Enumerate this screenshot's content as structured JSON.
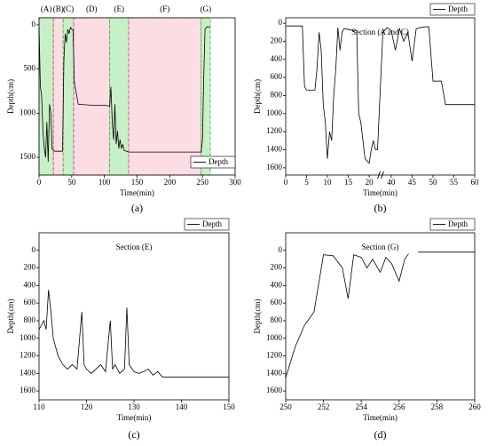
{
  "chart_data": [
    {
      "type": "line",
      "panel_label": "(a)",
      "xlabel": "Time(min)",
      "ylabel": "Depth(cm)",
      "x": [
        0,
        2,
        4,
        6,
        8,
        10,
        12,
        14,
        16,
        18,
        20,
        22,
        24,
        30,
        36,
        38,
        40,
        42,
        44,
        46,
        48,
        50,
        52,
        54,
        60,
        80,
        100,
        108,
        110,
        112,
        114,
        116,
        118,
        120,
        122,
        124,
        126,
        128,
        130,
        134,
        137,
        140,
        160,
        180,
        200,
        220,
        240,
        248,
        250,
        252,
        254,
        256,
        258,
        260,
        262
      ],
      "series": [
        {
          "name": "Depth",
          "color": "#000000",
          "values": [
            30,
            700,
            800,
            1200,
            1400,
            1500,
            1100,
            1550,
            900,
            1000,
            1400,
            1420,
            1430,
            1430,
            1430,
            400,
            100,
            200,
            50,
            100,
            30,
            50,
            60,
            650,
            900,
            910,
            910,
            920,
            700,
            1100,
            1300,
            900,
            1350,
            1200,
            1400,
            1300,
            1400,
            1350,
            1420,
            1430,
            1440,
            1440,
            1440,
            1440,
            1440,
            1440,
            1440,
            1440,
            1300,
            600,
            50,
            30,
            20,
            30,
            30
          ]
        }
      ],
      "xlim": [
        0,
        300
      ],
      "xticks": [
        0,
        50,
        100,
        150,
        200,
        250,
        300
      ],
      "ylim": [
        -80,
        1700
      ],
      "yticks": [
        0,
        500,
        1000,
        1500
      ],
      "y_inverted": true,
      "legend": "lower right",
      "regions": [
        {
          "label": "(A)",
          "start": 0,
          "end": 22,
          "color": "#c8f0c8",
          "edge": "#3cb83c"
        },
        {
          "label": "(B)",
          "start": 22,
          "end": 37,
          "color": "#fcdde4",
          "edge": "#e04060"
        },
        {
          "label": "(C)",
          "start": 37,
          "end": 53,
          "color": "#c8f0c8",
          "edge": "#3cb83c"
        },
        {
          "label": "(D)",
          "start": 53,
          "end": 108,
          "color": "#fcdde4",
          "edge": "#e04060"
        },
        {
          "label": "(E)",
          "start": 108,
          "end": 137,
          "color": "#c8f0c8",
          "edge": "#3cb83c"
        },
        {
          "label": "(F)",
          "start": 137,
          "end": 248,
          "color": "#fcdde4",
          "edge": "#e04060"
        },
        {
          "label": "(G)",
          "start": 248,
          "end": 262,
          "color": "#c8f0c8",
          "edge": "#3cb83c"
        }
      ]
    },
    {
      "type": "line",
      "panel_label": "(b)",
      "title": "Section (A and C)",
      "xlabel": "Time(min)",
      "ylabel": "Depth(cm)",
      "x": [
        0,
        1,
        2,
        3,
        4,
        4.5,
        5,
        6,
        7,
        7.5,
        8,
        8.5,
        9,
        9.5,
        10,
        10.5,
        11,
        11.5,
        12,
        12.5,
        13,
        13.5,
        14,
        15,
        16,
        17,
        17.5,
        18,
        19,
        20,
        20.5,
        21,
        21.5,
        22,
        38,
        39,
        40,
        41,
        42,
        43,
        44,
        45,
        46,
        47,
        48,
        49,
        50,
        51,
        52,
        53,
        54,
        55,
        56,
        57,
        58,
        59,
        60
      ],
      "series": [
        {
          "name": "Depth",
          "color": "#000000",
          "values": [
            30,
            30,
            30,
            30,
            30,
            700,
            740,
            740,
            740,
            500,
            100,
            300,
            900,
            1100,
            1500,
            1200,
            1300,
            800,
            500,
            50,
            300,
            100,
            60,
            70,
            80,
            80,
            1000,
            1100,
            1500,
            1550,
            1400,
            1300,
            1400,
            1400,
            100,
            50,
            80,
            300,
            60,
            200,
            100,
            420,
            60,
            50,
            40,
            40,
            640,
            640,
            640,
            900,
            900,
            900,
            900,
            900,
            900,
            900,
            900
          ]
        }
      ],
      "xlim": [
        0,
        60
      ],
      "xbreak": [
        22,
        38
      ],
      "xticks": [
        0,
        5,
        10,
        15,
        20,
        40,
        45,
        50,
        55,
        60
      ],
      "ylim": [
        -60,
        1680
      ],
      "yticks": [
        0,
        200,
        400,
        600,
        800,
        1000,
        1200,
        1400,
        1600
      ],
      "y_inverted": true,
      "legend": "upper right"
    },
    {
      "type": "line",
      "panel_label": "(c)",
      "title": "Section (E)",
      "xlabel": "Time(min)",
      "ylabel": "Depth(cm)",
      "x": [
        110,
        111,
        111.5,
        112,
        112.5,
        113,
        114,
        115,
        116,
        117,
        118,
        119,
        119.5,
        120,
        121,
        122,
        123,
        124,
        125,
        125.5,
        126,
        127,
        128,
        128.5,
        129,
        130,
        131,
        132,
        133,
        134,
        135,
        136,
        137,
        140,
        145,
        150
      ],
      "series": [
        {
          "name": "Depth",
          "color": "#000000",
          "values": [
            900,
            800,
            900,
            450,
            700,
            1000,
            1200,
            1300,
            1350,
            1300,
            1350,
            700,
            1300,
            1350,
            1400,
            1350,
            1300,
            1380,
            800,
            1350,
            1300,
            1400,
            1350,
            650,
            1300,
            1380,
            1400,
            1380,
            1350,
            1420,
            1380,
            1440,
            1440,
            1440,
            1440,
            1440
          ]
        }
      ],
      "xlim": [
        110,
        150
      ],
      "xticks": [
        110,
        120,
        130,
        140,
        150
      ],
      "ylim": [
        -200,
        1700
      ],
      "yticks": [
        0,
        200,
        400,
        600,
        800,
        1000,
        1200,
        1400,
        1600
      ],
      "y_inverted": true,
      "legend": "upper right"
    },
    {
      "type": "line",
      "panel_label": "(d)",
      "title": "Section (G)",
      "xlabel": "Time(min)",
      "ylabel": "Depth(cm)",
      "x": [
        250,
        250.5,
        251,
        251.5,
        252,
        252.5,
        253,
        253.3,
        253.6,
        254,
        254.3,
        254.6,
        255,
        255.3,
        255.6,
        256,
        256.3,
        256.5,
        256.7,
        257,
        260
      ],
      "series": [
        {
          "name": "Depth",
          "color": "#000000",
          "values": [
            1450,
            1100,
            850,
            700,
            50,
            60,
            200,
            550,
            50,
            80,
            200,
            100,
            250,
            80,
            150,
            350,
            100,
            40,
            null,
            20,
            20
          ]
        }
      ],
      "xlim": [
        250,
        260
      ],
      "xticks": [
        250,
        252,
        254,
        256,
        258,
        260
      ],
      "ylim": [
        -200,
        1700
      ],
      "yticks": [
        0,
        200,
        400,
        600,
        800,
        1000,
        1200,
        1400,
        1600
      ],
      "y_inverted": true,
      "legend": "upper right"
    }
  ]
}
